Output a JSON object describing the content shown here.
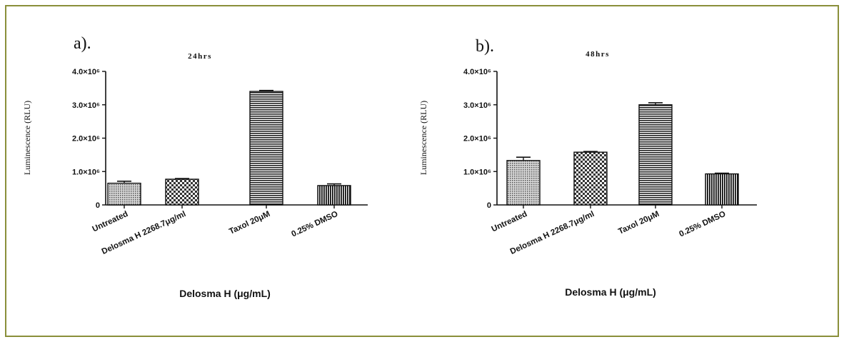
{
  "colors": {
    "border": "#8a8f3a",
    "ink": "#111111"
  },
  "chart_data": [
    {
      "type": "bar",
      "panel_label": "a).",
      "title": "24hrs",
      "xlabel": "Delosma H (μg/mL)",
      "ylabel": "Luminescence (RLU)",
      "ylim": [
        0,
        4000000
      ],
      "yticks": [
        0,
        1000000,
        2000000,
        3000000,
        4000000
      ],
      "ytick_labels": [
        "0",
        "1.0×10⁶",
        "2.0×10⁶",
        "3.0×10⁶",
        "4.0×10⁶"
      ],
      "categories": [
        "Untreated",
        "Delosma H 2268.7μg/ml",
        "Taxol 20μM",
        "0.25% DMSO"
      ],
      "values": [
        650000,
        770000,
        3400000,
        580000
      ],
      "errors": [
        60000,
        20000,
        30000,
        50000
      ],
      "patterns": [
        "dots",
        "checker",
        "hlines",
        "vlines"
      ],
      "grid": false,
      "legend": "none"
    },
    {
      "type": "bar",
      "panel_label": "b).",
      "title": "48hrs",
      "xlabel": "Delosma H (μg/mL)",
      "ylabel": "Luminescence (RLU)",
      "ylim": [
        0,
        4000000
      ],
      "yticks": [
        0,
        1000000,
        2000000,
        3000000,
        4000000
      ],
      "ytick_labels": [
        "0",
        "1.0×10⁶",
        "2.0×10⁶",
        "3.0×10⁶",
        "4.0×10⁶"
      ],
      "categories": [
        "Untreated",
        "Delosma H 2268.7μg/ml",
        "Taxol 20μM",
        "0.25% DMSO"
      ],
      "values": [
        1330000,
        1580000,
        3000000,
        930000
      ],
      "errors": [
        100000,
        20000,
        60000,
        20000
      ],
      "patterns": [
        "dots",
        "checker",
        "hlines",
        "vlines"
      ],
      "grid": false,
      "legend": "none"
    }
  ]
}
